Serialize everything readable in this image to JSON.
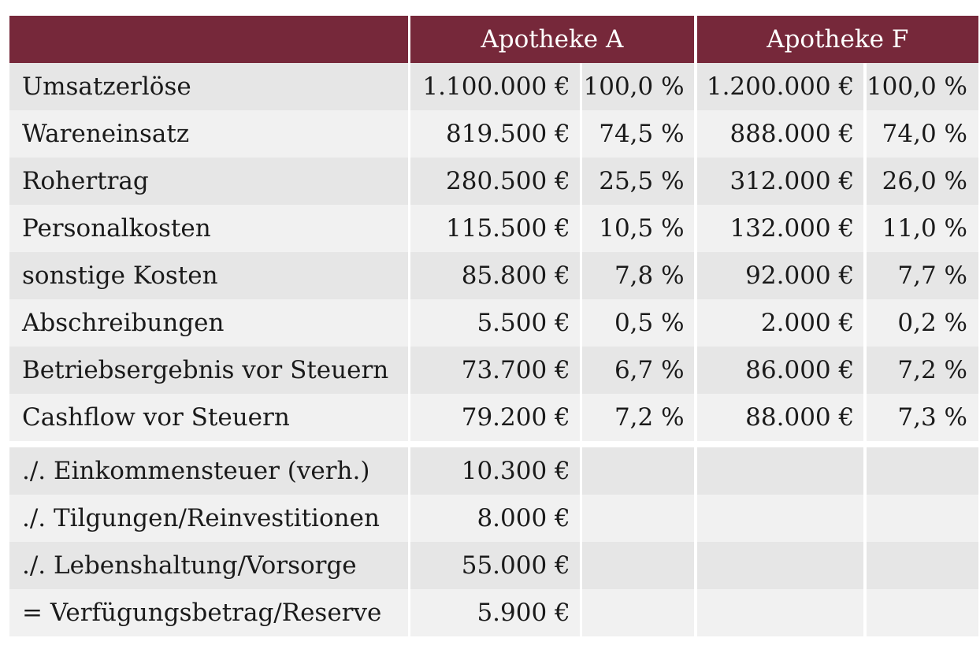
{
  "header": {
    "col_a": "Apotheke A",
    "col_f": "Apotheke F"
  },
  "rows": [
    {
      "label": "Umsatzerlöse",
      "a_value": "1.100.000 €",
      "a_pct": "100,0 %",
      "f_value": "1.200.000 €",
      "f_pct": "100,0 %"
    },
    {
      "label": "Wareneinsatz",
      "a_value": "819.500 €",
      "a_pct": "74,5 %",
      "f_value": "888.000 €",
      "f_pct": "74,0 %"
    },
    {
      "label": "Rohertrag",
      "a_value": "280.500 €",
      "a_pct": "25,5 %",
      "f_value": "312.000 €",
      "f_pct": "26,0 %"
    },
    {
      "label": "Personalkosten",
      "a_value": "115.500 €",
      "a_pct": "10,5 %",
      "f_value": "132.000 €",
      "f_pct": "11,0 %"
    },
    {
      "label": "sonstige Kosten",
      "a_value": "85.800 €",
      "a_pct": "7,8 %",
      "f_value": "92.000 €",
      "f_pct": "7,7 %"
    },
    {
      "label": "Abschreibungen",
      "a_value": "5.500 €",
      "a_pct": "0,5 %",
      "f_value": "2.000 €",
      "f_pct": "0,2 %"
    },
    {
      "label": "Betriebsergebnis vor Steuern",
      "a_value": "73.700 €",
      "a_pct": "6,7 %",
      "f_value": "86.000 €",
      "f_pct": "7,2 %"
    },
    {
      "label": "Cashflow vor Steuern",
      "a_value": "79.200 €",
      "a_pct": "7,2 %",
      "f_value": "88.000 €",
      "f_pct": "7,3 %"
    }
  ],
  "extra_rows": [
    {
      "label": "./. Einkommensteuer (verh.)",
      "a_value": "10.300 €"
    },
    {
      "label": "./. Tilgungen/Reinvestitionen",
      "a_value": "8.000 €"
    },
    {
      "label": "./. Lebenshaltung/Vorsorge",
      "a_value": "55.000 €"
    },
    {
      "label": "= Verfügungsbetrag/Reserve",
      "a_value": "5.900 €"
    }
  ]
}
